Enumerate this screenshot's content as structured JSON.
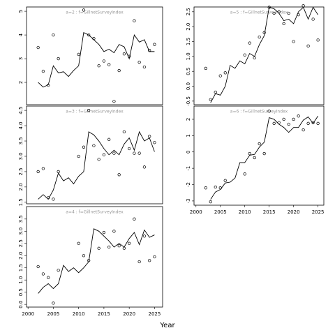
{
  "xlabel": "Year",
  "chart_data": [
    {
      "type": "line",
      "title": "a=2 : f=GillnetSurveyIndex",
      "x": [
        2002,
        2003,
        2004,
        2005,
        2006,
        2007,
        2008,
        2009,
        2010,
        2011,
        2012,
        2013,
        2014,
        2015,
        2016,
        2017,
        2018,
        2019,
        2020,
        2021,
        2022,
        2023,
        2024,
        2025
      ],
      "xlim": [
        1999.7,
        2026.6
      ],
      "ylim": [
        1.06,
        5.18
      ],
      "yticks": [
        2,
        3,
        4,
        5
      ],
      "series": [
        {
          "mode": "markers",
          "color": "#000000",
          "values": [
            3.47,
            2.47,
            1.88,
            4.0,
            3.0,
            null,
            null,
            null,
            3.18,
            5.05,
            4.0,
            3.85,
            2.7,
            2.9,
            2.75,
            1.2,
            2.5,
            3.2,
            3.1,
            4.6,
            2.85,
            2.65,
            3.35,
            3.6
          ]
        },
        {
          "mode": "lines",
          "color": "#000000",
          "values": [
            2.0,
            1.8,
            1.9,
            2.7,
            2.4,
            2.45,
            2.25,
            2.5,
            2.7,
            4.1,
            4.0,
            3.8,
            3.6,
            3.3,
            3.4,
            3.25,
            3.6,
            3.5,
            3.0,
            4.0,
            3.7,
            3.8,
            3.3,
            3.3
          ]
        }
      ]
    },
    {
      "type": "line",
      "title": "a=3 : f=GillnetSurveyIndex",
      "x": [
        2002,
        2003,
        2004,
        2005,
        2006,
        2007,
        2008,
        2009,
        2010,
        2011,
        2012,
        2013,
        2014,
        2015,
        2016,
        2017,
        2018,
        2019,
        2020,
        2021,
        2022,
        2023,
        2024,
        2025
      ],
      "xlim": [
        1999.7,
        2026.6
      ],
      "ylim": [
        1.45,
        4.64
      ],
      "yticks": [
        1.5,
        {
          "value": 2,
          "label": "2.0"
        },
        2.5,
        {
          "value": 3,
          "label": "3.0"
        },
        3.5,
        {
          "value": 4,
          "label": "4.0"
        },
        4.5
      ],
      "series": [
        {
          "mode": "markers",
          "color": "#000000",
          "values": [
            2.5,
            2.6,
            1.65,
            1.6,
            2.5,
            null,
            null,
            null,
            3.0,
            3.3,
            4.5,
            3.35,
            2.9,
            3.05,
            3.55,
            3.1,
            2.4,
            3.8,
            3.25,
            3.1,
            3.1,
            2.65,
            3.65,
            3.45
          ]
        },
        {
          "mode": "lines",
          "color": "#000000",
          "values": [
            1.6,
            1.75,
            1.6,
            1.9,
            2.45,
            2.2,
            2.3,
            2.1,
            2.35,
            2.5,
            3.8,
            3.7,
            3.5,
            3.25,
            3.05,
            3.2,
            3.05,
            3.4,
            3.6,
            3.2,
            3.8,
            3.5,
            3.6,
            3.15
          ]
        }
      ]
    },
    {
      "type": "line",
      "title": "a=4 : f=GillnetSurveyIndex",
      "x": [
        2002,
        2003,
        2004,
        2005,
        2006,
        2007,
        2008,
        2009,
        2010,
        2011,
        2012,
        2013,
        2014,
        2015,
        2016,
        2017,
        2018,
        2019,
        2020,
        2021,
        2022,
        2023,
        2024,
        2025
      ],
      "xlim": [
        1999.7,
        2026.6
      ],
      "ylim": [
        -0.11,
        4.01
      ],
      "xticks": [
        2000,
        2005,
        2010,
        2015,
        2020,
        2025
      ],
      "yticks": [
        {
          "value": 0,
          "label": "0.0"
        },
        0.5,
        {
          "value": 1,
          "label": "1.0"
        },
        1.5,
        {
          "value": 2,
          "label": "2.0"
        },
        2.5,
        {
          "value": 3,
          "label": "3.0"
        },
        3.5
      ],
      "series": [
        {
          "mode": "markers",
          "color": "#000000",
          "values": [
            1.55,
            1.25,
            1.1,
            0.05,
            1.4,
            null,
            null,
            null,
            2.5,
            2.0,
            1.8,
            null,
            2.3,
            2.95,
            2.35,
            3.0,
            2.4,
            2.3,
            2.5,
            3.5,
            1.75,
            2.8,
            1.8,
            1.95
          ]
        },
        {
          "mode": "lines",
          "color": "#000000",
          "values": [
            0.45,
            0.7,
            0.85,
            0.65,
            0.85,
            1.6,
            1.35,
            1.5,
            1.3,
            1.5,
            1.75,
            3.1,
            3.0,
            2.8,
            2.6,
            2.35,
            2.5,
            2.35,
            2.7,
            2.95,
            2.45,
            3.05,
            2.75,
            2.85
          ]
        }
      ]
    },
    {
      "type": "line",
      "title": "a=5 : f=GillnetSurveyIndex",
      "x": [
        2002,
        2003,
        2004,
        2005,
        2006,
        2007,
        2008,
        2009,
        2010,
        2011,
        2012,
        2013,
        2014,
        2015,
        2016,
        2017,
        2018,
        2019,
        2020,
        2021,
        2022,
        2023,
        2024,
        2025
      ],
      "xlim": [
        1999.6,
        2026.2
      ],
      "ylim": [
        -0.62,
        2.66
      ],
      "yticks": [
        -0.5,
        {
          "value": 0,
          "label": "0.0"
        },
        0.5,
        {
          "value": 1,
          "label": "1.0"
        },
        1.5,
        {
          "value": 2,
          "label": "2.0"
        },
        2.5
      ],
      "series": [
        {
          "mode": "markers",
          "color": "#000000",
          "values": [
            0.6,
            -0.45,
            -0.2,
            0.35,
            0.45,
            null,
            null,
            null,
            1.05,
            1.45,
            0.95,
            1.65,
            1.8,
            2.65,
            2.45,
            2.5,
            2.1,
            2.45,
            1.5,
            2.4,
            2.7,
            1.35,
            2.25,
            1.55
          ]
        },
        {
          "mode": "lines",
          "color": "#000000",
          "values": [
            null,
            -0.55,
            -0.25,
            -0.3,
            0.0,
            0.7,
            0.6,
            0.85,
            0.75,
            1.1,
            1.0,
            1.4,
            1.7,
            2.65,
            2.6,
            2.45,
            2.2,
            2.25,
            2.1,
            2.5,
            2.65,
            2.25,
            2.65,
            2.4
          ]
        }
      ]
    },
    {
      "type": "line",
      "title": "a=6 : f=GillnetSurveyIndex",
      "x": [
        2002,
        2003,
        2004,
        2005,
        2006,
        2007,
        2008,
        2009,
        2010,
        2011,
        2012,
        2013,
        2014,
        2015,
        2016,
        2017,
        2018,
        2019,
        2020,
        2021,
        2022,
        2023,
        2024,
        2025
      ],
      "xlim": [
        1999.6,
        2026.2
      ],
      "ylim": [
        -3.26,
        2.81
      ],
      "xticks": [
        2000,
        2005,
        2010,
        2015,
        2020,
        2025
      ],
      "yticks": [
        -3,
        -2,
        -1,
        0,
        1,
        2
      ],
      "series": [
        {
          "mode": "markers",
          "color": "#000000",
          "values": [
            -2.2,
            -3.05,
            -2.15,
            -2.2,
            -1.75,
            null,
            null,
            null,
            -1.35,
            -0.1,
            -0.35,
            0.5,
            -0.1,
            2.5,
            1.75,
            1.8,
            2.0,
            1.7,
            2.0,
            2.2,
            1.35,
            1.75,
            1.8,
            1.75
          ]
        },
        {
          "mode": "lines",
          "color": "#000000",
          "values": [
            null,
            -2.9,
            -2.45,
            -2.3,
            -1.9,
            -1.85,
            -1.6,
            -0.65,
            -0.65,
            -0.2,
            -0.15,
            0.3,
            0.6,
            2.1,
            2.0,
            1.7,
            1.5,
            1.2,
            1.5,
            1.5,
            1.95,
            2.15,
            1.75,
            2.2
          ]
        }
      ]
    }
  ]
}
